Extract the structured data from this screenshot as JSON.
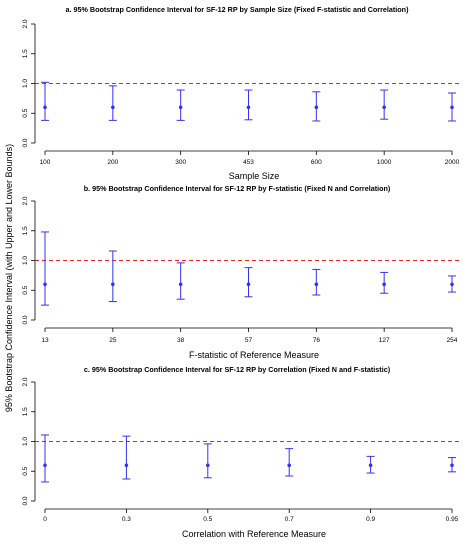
{
  "y_label": "95% Bootstrap Confidence Interval (with Upper and Lower Bounds)",
  "colors": {
    "interval": "#3333ee",
    "reference_line": "#ee2222",
    "axis": "#000000"
  },
  "chart_data": [
    {
      "type": "errorbar",
      "title": "a. 95% Bootstrap Confidence Interval for SF-12 RP by Sample Size (Fixed F-statistic and Correlation)",
      "xlabel": "Sample Size",
      "categories": [
        "100",
        "200",
        "300",
        "453",
        "600",
        "1000",
        "2000"
      ],
      "estimate": [
        0.6,
        0.6,
        0.6,
        0.6,
        0.6,
        0.6,
        0.6
      ],
      "lower": [
        0.38,
        0.38,
        0.38,
        0.39,
        0.37,
        0.4,
        0.37
      ],
      "upper": [
        1.02,
        0.96,
        0.89,
        0.89,
        0.86,
        0.89,
        0.84
      ],
      "ylim": [
        0,
        2
      ],
      "yticks": [
        0.0,
        0.5,
        1.0,
        1.5,
        2.0
      ],
      "reference_line": 1.0
    },
    {
      "type": "errorbar",
      "title": "b. 95% Bootstrap Confidence Interval for SF-12 RP by F-statistic (Fixed N and Correlation)",
      "xlabel": "F-statistic of Reference Measure",
      "categories": [
        "13",
        "25",
        "38",
        "57",
        "76",
        "127",
        "254"
      ],
      "estimate": [
        0.6,
        0.6,
        0.6,
        0.6,
        0.6,
        0.6,
        0.6
      ],
      "lower": [
        0.25,
        0.31,
        0.35,
        0.39,
        0.42,
        0.45,
        0.47
      ],
      "upper": [
        1.48,
        1.16,
        0.96,
        0.88,
        0.85,
        0.8,
        0.74
      ],
      "ylim": [
        0,
        2
      ],
      "yticks": [
        0.0,
        0.5,
        1.0,
        1.5,
        2.0
      ],
      "reference_line": 1.0
    },
    {
      "type": "errorbar",
      "title": "c. 95% Bootstrap Confidence Interval for SF-12 RP by Correlation (Fixed N and F-statistic)",
      "xlabel": "Correlation with Reference Measure",
      "categories": [
        "0",
        "0.3",
        "0.5",
        "0.7",
        "0.9",
        "0.95"
      ],
      "estimate": [
        0.6,
        0.6,
        0.6,
        0.6,
        0.6,
        0.6
      ],
      "lower": [
        0.32,
        0.37,
        0.39,
        0.42,
        0.47,
        0.49
      ],
      "upper": [
        1.11,
        1.09,
        0.96,
        0.88,
        0.75,
        0.73
      ],
      "ylim": [
        0,
        2
      ],
      "yticks": [
        0.0,
        0.5,
        1.0,
        1.5,
        2.0
      ],
      "reference_line": 1.0
    }
  ]
}
